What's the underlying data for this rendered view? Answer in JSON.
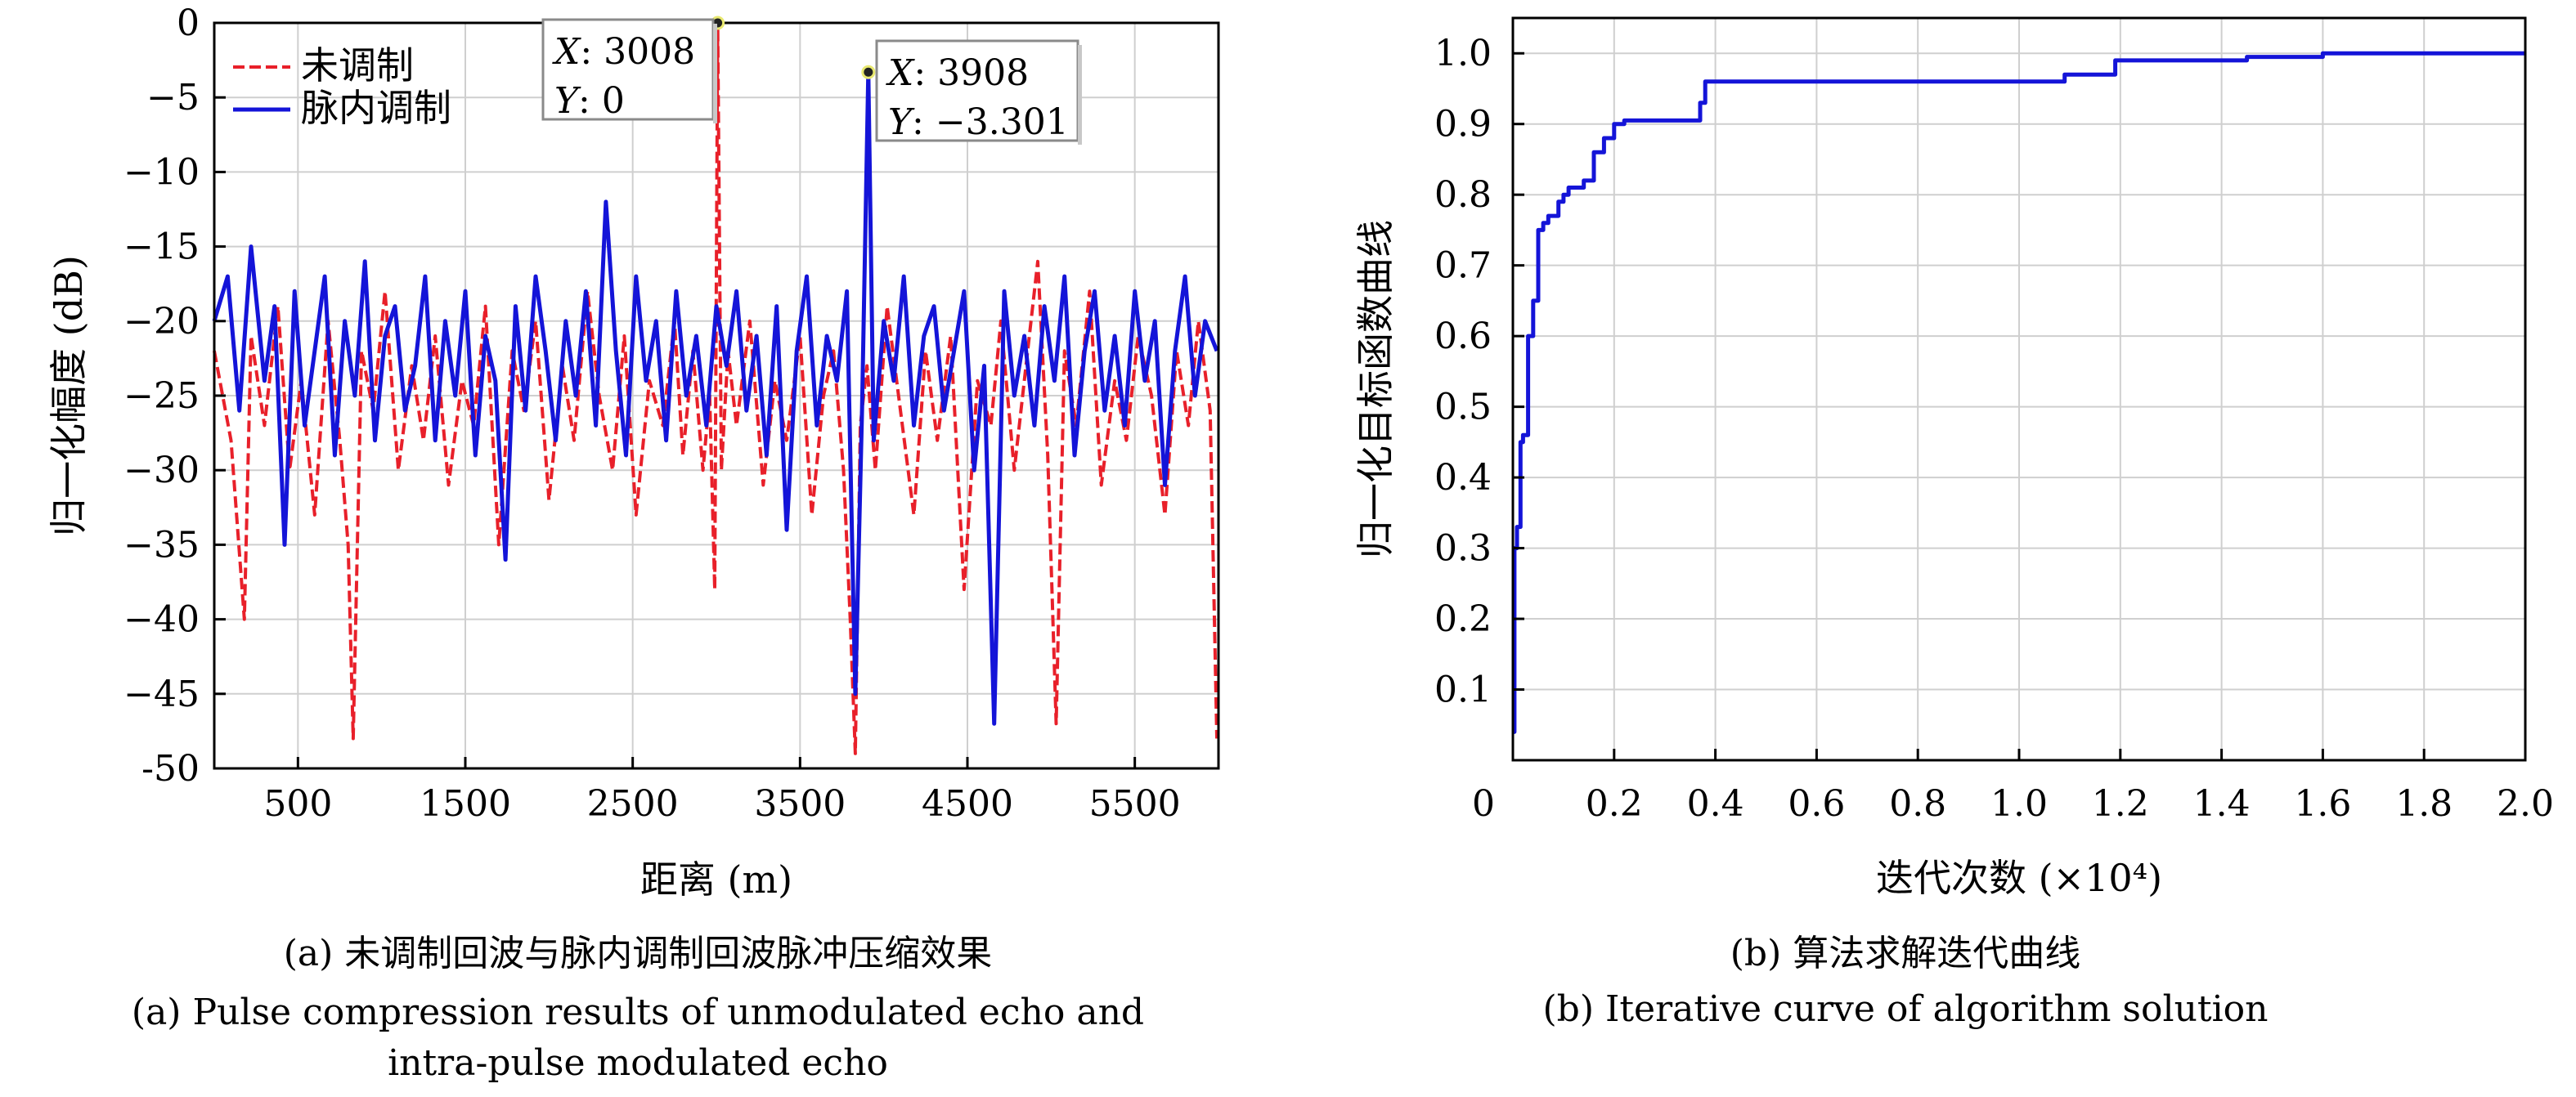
{
  "panel_a": {
    "caption_zh": "(a) 未调制回波与脉内调制回波脉冲压缩效果",
    "caption_en_1": "(a) Pulse compression results of unmodulated echo and",
    "caption_en_2": "intra-pulse modulated echo",
    "datatip_1": {
      "x_label": "X",
      "x_value": "3008",
      "y_label": "Y",
      "y_value": "0"
    },
    "datatip_2": {
      "x_label": "X",
      "x_value": "3908",
      "y_label": "Y",
      "y_value": "-3.301"
    }
  },
  "panel_b": {
    "caption_zh": "(b) 算法求解迭代曲线",
    "caption_en": "(b) Iterative curve of algorithm solution"
  },
  "colors": {
    "unmodulated": "#e8202a",
    "intra_pulse": "#1414d8",
    "grid": "#cfcfcf",
    "axis": "#000000"
  },
  "chart_data": [
    {
      "type": "line",
      "xlabel": "距离 (m)",
      "ylabel": "归一化幅度 (dB)",
      "xlim": [
        0,
        6000
      ],
      "ylim": [
        -50,
        0
      ],
      "xticks": [
        500,
        1500,
        2500,
        3500,
        4500,
        5500
      ],
      "yticks": [
        0,
        -5,
        -10,
        -15,
        -20,
        -25,
        -30,
        -35,
        -40,
        -45,
        -50
      ],
      "ytick_labels": [
        "0",
        "−5",
        "−10",
        "−15",
        "−20",
        "−25",
        "−30",
        "−35",
        "−40",
        "−45",
        "-50"
      ],
      "grid": true,
      "legend": "top-left",
      "series": [
        {
          "name": "未调制",
          "style": "dashed",
          "x": [
            0,
            100,
            180,
            220,
            300,
            380,
            450,
            520,
            600,
            680,
            750,
            800,
            830,
            880,
            950,
            1020,
            1100,
            1180,
            1250,
            1320,
            1400,
            1480,
            1550,
            1620,
            1700,
            1780,
            1850,
            1920,
            2000,
            2080,
            2150,
            2230,
            2300,
            2380,
            2450,
            2520,
            2600,
            2680,
            2750,
            2800,
            2860,
            2920,
            2960,
            2990,
            3008,
            3030,
            3070,
            3120,
            3200,
            3280,
            3350,
            3420,
            3500,
            3570,
            3640,
            3700,
            3760,
            3800,
            3830,
            3860,
            3900,
            3950,
            4020,
            4100,
            4180,
            4250,
            4320,
            4400,
            4480,
            4560,
            4640,
            4700,
            4780,
            4850,
            4920,
            4980,
            5030,
            5080,
            5150,
            5230,
            5300,
            5380,
            5450,
            5520,
            5600,
            5680,
            5750,
            5820,
            5880,
            5950,
            5990
          ],
          "y": [
            -22,
            -28,
            -40,
            -21,
            -27,
            -19,
            -30,
            -24,
            -33,
            -20,
            -28,
            -35,
            -48,
            -22,
            -26,
            -18,
            -30,
            -23,
            -28,
            -21,
            -31,
            -24,
            -27,
            -19,
            -35,
            -22,
            -26,
            -20,
            -32,
            -23,
            -28,
            -18,
            -25,
            -30,
            -21,
            -33,
            -24,
            -27,
            -20,
            -29,
            -22,
            -30,
            -25,
            -38,
            0,
            -30,
            -22,
            -27,
            -20,
            -31,
            -24,
            -28,
            -21,
            -33,
            -25,
            -22,
            -30,
            -40,
            -49,
            -27,
            -23,
            -30,
            -19,
            -26,
            -33,
            -22,
            -28,
            -21,
            -38,
            -24,
            -27,
            -20,
            -30,
            -23,
            -16,
            -29,
            -47,
            -22,
            -27,
            -18,
            -31,
            -24,
            -28,
            -21,
            -25,
            -33,
            -22,
            -27,
            -20,
            -26,
            -48
          ]
        },
        {
          "name": "脉内调制",
          "style": "solid",
          "x": [
            0,
            80,
            150,
            220,
            300,
            360,
            420,
            480,
            540,
            600,
            660,
            720,
            780,
            840,
            900,
            960,
            1020,
            1080,
            1140,
            1200,
            1260,
            1320,
            1380,
            1440,
            1500,
            1560,
            1620,
            1680,
            1740,
            1800,
            1860,
            1920,
            1980,
            2040,
            2100,
            2160,
            2220,
            2280,
            2340,
            2400,
            2460,
            2520,
            2580,
            2640,
            2700,
            2760,
            2820,
            2880,
            2940,
            3000,
            3060,
            3120,
            3180,
            3240,
            3300,
            3360,
            3420,
            3480,
            3540,
            3600,
            3660,
            3720,
            3780,
            3830,
            3870,
            3908,
            3940,
            4000,
            4060,
            4120,
            4180,
            4240,
            4300,
            4360,
            4420,
            4480,
            4540,
            4600,
            4660,
            4720,
            4780,
            4840,
            4900,
            4960,
            5020,
            5080,
            5140,
            5200,
            5260,
            5320,
            5380,
            5440,
            5500,
            5560,
            5620,
            5680,
            5740,
            5800,
            5860,
            5920,
            5990
          ],
          "y": [
            -20,
            -17,
            -26,
            -15,
            -24,
            -19,
            -35,
            -18,
            -27,
            -22,
            -17,
            -29,
            -20,
            -25,
            -16,
            -28,
            -21,
            -19,
            -26,
            -23,
            -17,
            -28,
            -20,
            -25,
            -18,
            -29,
            -21,
            -24,
            -36,
            -19,
            -26,
            -17,
            -22,
            -28,
            -20,
            -25,
            -18,
            -27,
            -12,
            -22,
            -29,
            -17,
            -24,
            -20,
            -28,
            -18,
            -25,
            -21,
            -27,
            -19,
            -23,
            -18,
            -26,
            -21,
            -29,
            -19,
            -34,
            -22,
            -17,
            -27,
            -21,
            -24,
            -18,
            -45,
            -26,
            -3.301,
            -28,
            -20,
            -24,
            -17,
            -27,
            -21,
            -19,
            -26,
            -22,
            -18,
            -30,
            -23,
            -47,
            -18,
            -25,
            -21,
            -27,
            -19,
            -24,
            -17,
            -29,
            -22,
            -18,
            -26,
            -21,
            -27,
            -18,
            -24,
            -20,
            -31,
            -22,
            -17,
            -25,
            -20,
            -22
          ]
        }
      ]
    },
    {
      "type": "line",
      "xlabel": "迭代次数 (×10⁴)",
      "ylabel": "归一化目标函数曲线",
      "xlim": [
        0,
        2.0
      ],
      "ylim": [
        0,
        1.05
      ],
      "xticks": [
        0,
        0.2,
        0.4,
        0.6,
        0.8,
        1.0,
        1.2,
        1.4,
        1.6,
        1.8,
        2.0
      ],
      "yticks": [
        0.1,
        0.2,
        0.3,
        0.4,
        0.5,
        0.6,
        0.7,
        0.8,
        0.9,
        1.0
      ],
      "grid": true,
      "series": [
        {
          "x": [
            0,
            0.003,
            0.008,
            0.015,
            0.02,
            0.03,
            0.04,
            0.05,
            0.06,
            0.07,
            0.08,
            0.09,
            0.1,
            0.11,
            0.12,
            0.14,
            0.16,
            0.18,
            0.2,
            0.22,
            0.3,
            0.36,
            0.37,
            0.38,
            0.6,
            1.0,
            1.08,
            1.09,
            1.18,
            1.19,
            1.44,
            1.45,
            1.6,
            2.0
          ],
          "y": [
            0.04,
            0.3,
            0.33,
            0.45,
            0.46,
            0.6,
            0.65,
            0.75,
            0.76,
            0.77,
            0.77,
            0.79,
            0.8,
            0.81,
            0.81,
            0.82,
            0.86,
            0.88,
            0.9,
            0.905,
            0.905,
            0.905,
            0.93,
            0.96,
            0.96,
            0.96,
            0.96,
            0.97,
            0.97,
            0.99,
            0.99,
            0.995,
            1.0,
            1.0
          ]
        }
      ]
    }
  ]
}
